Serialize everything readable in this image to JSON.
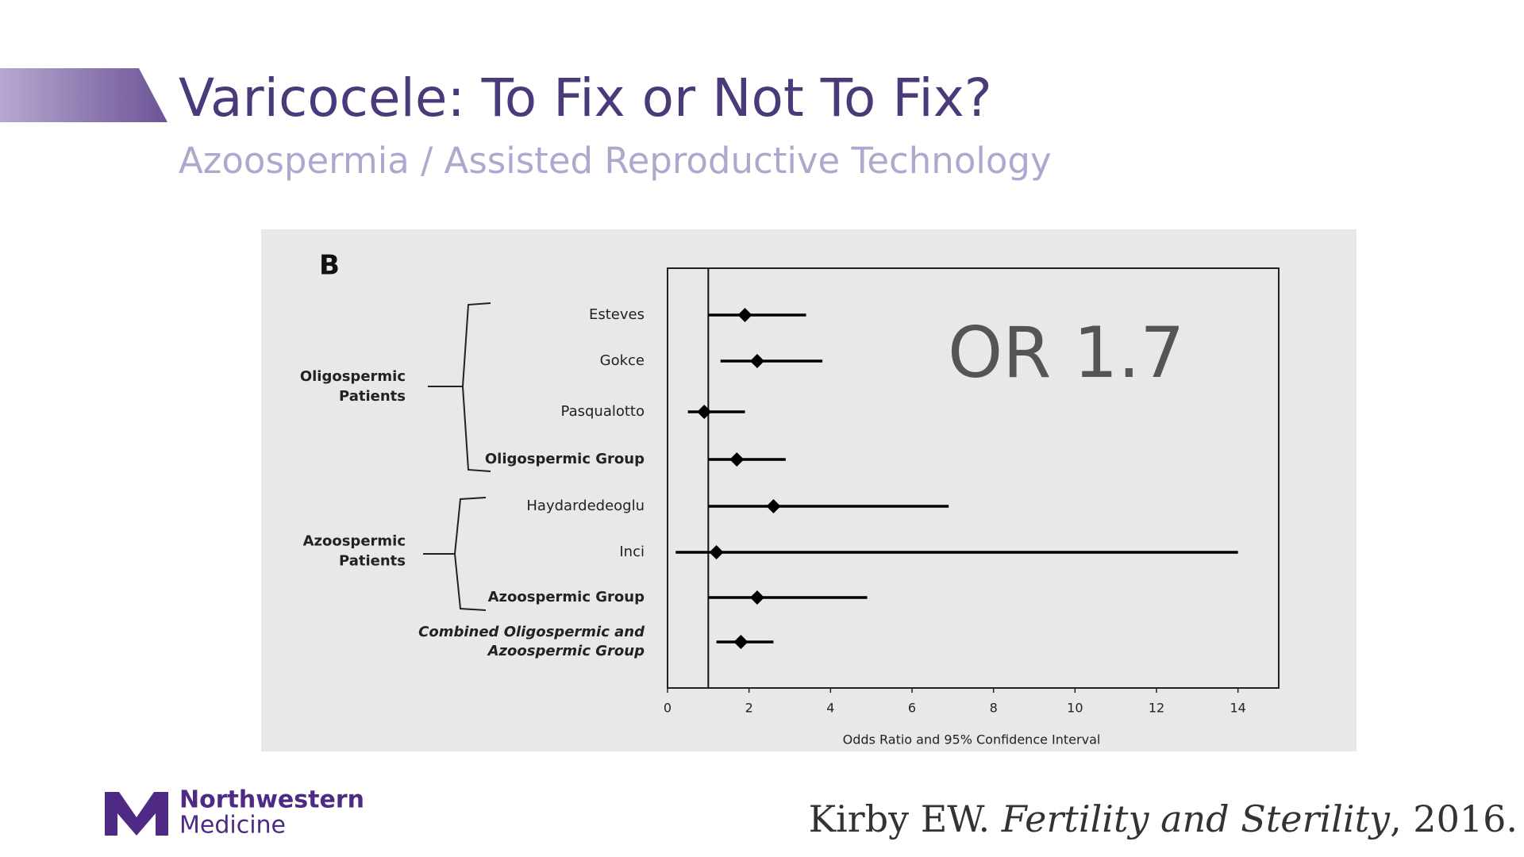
{
  "slide": {
    "title": "Varicocele: To Fix or Not To Fix?",
    "subtitle": "Azoospermia / Assisted Reproductive Technology",
    "logo": {
      "line1": "Northwestern",
      "line2": "Medicine"
    },
    "citation": {
      "author": "Kirby EW.",
      "journal": "Fertility and Sterility",
      "year": ", 2016."
    }
  },
  "chart_data": {
    "type": "forest",
    "panel_label": "B",
    "annotation": "OR 1.7",
    "x_label": "Odds Ratio and 95% Confidence Interval",
    "categories": [
      "Esteves",
      "Gokce",
      "Pasqualotto",
      "Oligospermic Group",
      "Haydardedeoglu",
      "Inci",
      "Azoospermic Group",
      [
        "Combined Oligospermic and",
        "Azoospermic Group"
      ]
    ],
    "category_styles": [
      "normal",
      "normal",
      "normal",
      "bold",
      "normal",
      "normal",
      "bold",
      "bold-italic"
    ],
    "groups": [
      {
        "label": [
          "Oligospermic",
          "Patients"
        ],
        "rows": [
          0,
          3
        ]
      },
      {
        "label": [
          "Azoospermic",
          "Patients"
        ],
        "rows": [
          4,
          6
        ]
      }
    ],
    "values": [
      1.9,
      2.2,
      0.9,
      1.7,
      2.6,
      1.2,
      2.2,
      1.8
    ],
    "lower": [
      1.0,
      1.3,
      0.5,
      1.0,
      1.0,
      0.2,
      1.0,
      1.2
    ],
    "upper": [
      3.4,
      3.8,
      1.9,
      2.9,
      6.9,
      14.0,
      4.9,
      2.6
    ],
    "reference_line": 1,
    "xlim": [
      0,
      15
    ],
    "xticks": [
      0,
      2,
      4,
      6,
      8,
      10,
      12,
      14
    ],
    "color": "#000000"
  }
}
